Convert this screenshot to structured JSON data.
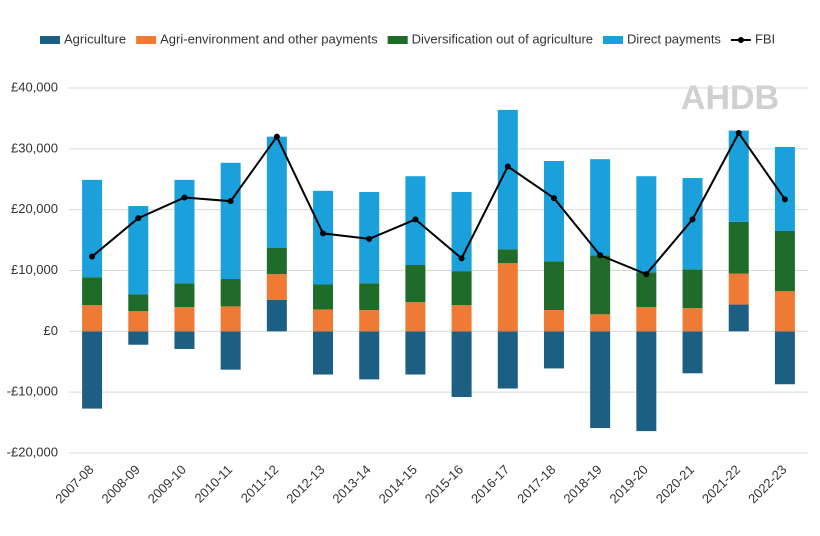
{
  "chart_data": {
    "type": "bar",
    "stacked": true,
    "watermark": "AHDB",
    "categories": [
      "2007-08",
      "2008-09",
      "2009-10",
      "2010-11",
      "2011-12",
      "2012-13",
      "2013-14",
      "2014-15",
      "2015-16",
      "2016-17",
      "2017-18",
      "2018-19",
      "2019-20",
      "2020-21",
      "2021-22",
      "2022-23"
    ],
    "series": [
      {
        "name": "Agriculture",
        "color": "#1c5f82",
        "values": [
          -12700,
          -2200,
          -2900,
          -6300,
          5200,
          -7100,
          -7900,
          -7100,
          -10800,
          -9400,
          -6100,
          -15900,
          -16400,
          -6900,
          4400,
          -8700
        ]
      },
      {
        "name": "Agri-environment and other payments",
        "color": "#ee7a36",
        "values": [
          4300,
          3300,
          4000,
          4100,
          4200,
          3600,
          3500,
          4800,
          4300,
          11200,
          3500,
          2800,
          4000,
          3800,
          5100,
          6600
        ]
      },
      {
        "name": "Diversification out of agriculture",
        "color": "#1e6b2a",
        "values": [
          4600,
          2800,
          3900,
          4500,
          4300,
          4100,
          4400,
          6100,
          5600,
          2300,
          8000,
          9700,
          5700,
          6400,
          8500,
          9900
        ]
      },
      {
        "name": "Direct payments",
        "color": "#1aa0da",
        "values": [
          16000,
          14500,
          17000,
          19100,
          18300,
          15400,
          15000,
          14600,
          13000,
          22900,
          16500,
          15800,
          15800,
          15000,
          15000,
          13800
        ]
      },
      {
        "name": "FBI",
        "type": "line",
        "color": "#000000",
        "values": [
          12300,
          18600,
          22000,
          21400,
          32000,
          16100,
          15200,
          18400,
          12000,
          27100,
          21900,
          12500,
          9400,
          18400,
          32600,
          21700
        ]
      }
    ],
    "ylim": [
      -20000,
      40000
    ],
    "yticks": [
      {
        "value": -20000,
        "label": "-£20,000"
      },
      {
        "value": -10000,
        "label": "-£10,000"
      },
      {
        "value": 0,
        "label": "£0"
      },
      {
        "value": 10000,
        "label": "£10,000"
      },
      {
        "value": 20000,
        "label": "£20,000"
      },
      {
        "value": 30000,
        "label": "£30,000"
      },
      {
        "value": 40000,
        "label": "£40,000"
      }
    ],
    "grid": true,
    "legend": "top"
  }
}
